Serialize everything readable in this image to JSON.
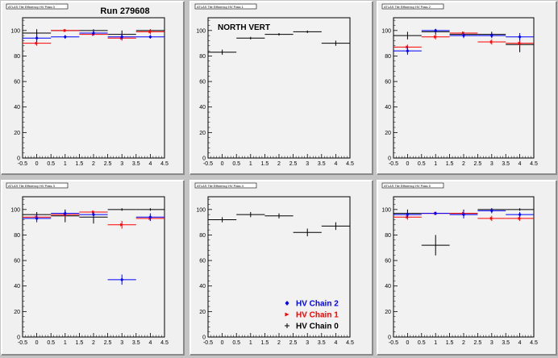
{
  "run_label": "Run 279608",
  "panel_titles": [
    "ATLAS Tile Efficiency HV Pass 0",
    "ATLAS Tile Efficiency HV Pass 1",
    "ATLAS Tile Efficiency HV Pass 2",
    "ATLAS Tile Efficiency HV Pass 3",
    "ATLAS Tile Efficiency HV Pass 4",
    "ATLAS Tile Efficiency HV Pass 5"
  ],
  "annotation": "NORTH VERT",
  "legend": [
    {
      "label": "HV Chain 2",
      "color": "#0000ff",
      "marker": "diamond"
    },
    {
      "label": "HV Chain 1",
      "color": "#ff0000",
      "marker": "triangle"
    },
    {
      "label": "HV Chain 0",
      "color": "#000000",
      "marker": "cross"
    }
  ],
  "colors": {
    "chain0": "#000000",
    "chain1": "#ff0000",
    "chain2": "#0000ff",
    "frame_bg": "#efefef",
    "canvas_bg": "#c4c4c4"
  },
  "chart_data": [
    {
      "type": "scatter",
      "xlim": [
        -0.5,
        4.5
      ],
      "ylim": [
        0,
        110
      ],
      "xticks": [
        "-0.5",
        "0",
        "0.5",
        "1",
        "1.5",
        "2",
        "2.5",
        "3",
        "3.5",
        "4",
        "4.5"
      ],
      "yticks": [
        "0",
        "20",
        "40",
        "60",
        "80",
        "100"
      ],
      "series": [
        {
          "color": "#000000",
          "points": [
            {
              "x": 0,
              "y": 98,
              "err": 3
            },
            {
              "x": 1,
              "y": 100,
              "err": 1
            },
            {
              "x": 2,
              "y": 100,
              "err": 1
            },
            {
              "x": 3,
              "y": 97,
              "err": 3
            },
            {
              "x": 4,
              "y": 100,
              "err": 1
            }
          ]
        },
        {
          "color": "#ff0000",
          "points": [
            {
              "x": 0,
              "y": 90,
              "err": 2
            },
            {
              "x": 1,
              "y": 100,
              "err": 1
            },
            {
              "x": 2,
              "y": 97,
              "err": 1
            },
            {
              "x": 3,
              "y": 94,
              "err": 2
            },
            {
              "x": 4,
              "y": 99,
              "err": 2
            }
          ]
        },
        {
          "color": "#0000ff",
          "points": [
            {
              "x": 0,
              "y": 94,
              "err": 3
            },
            {
              "x": 1,
              "y": 95,
              "err": 1
            },
            {
              "x": 2,
              "y": 98,
              "err": 2
            },
            {
              "x": 3,
              "y": 95,
              "err": 2
            },
            {
              "x": 4,
              "y": 95,
              "err": 1
            }
          ]
        }
      ]
    },
    {
      "type": "scatter",
      "xlim": [
        -0.5,
        4.5
      ],
      "ylim": [
        0,
        110
      ],
      "xticks": [
        "-0.5",
        "0",
        "0.5",
        "1",
        "1.5",
        "2",
        "2.5",
        "3",
        "3.5",
        "4",
        "4.5"
      ],
      "yticks": [
        "0",
        "20",
        "40",
        "60",
        "80",
        "100"
      ],
      "series": [
        {
          "color": "#000000",
          "points": [
            {
              "x": 0,
              "y": 83,
              "err": 2
            },
            {
              "x": 1,
              "y": 94,
              "err": 1
            },
            {
              "x": 2,
              "y": 97,
              "err": 1
            },
            {
              "x": 3,
              "y": 99,
              "err": 1
            },
            {
              "x": 4,
              "y": 90,
              "err": 2
            }
          ]
        }
      ]
    },
    {
      "type": "scatter",
      "xlim": [
        -0.5,
        4.5
      ],
      "ylim": [
        0,
        110
      ],
      "xticks": [
        "-0.5",
        "0",
        "0.5",
        "1",
        "1.5",
        "2",
        "2.5",
        "3",
        "3.5",
        "4",
        "4.5"
      ],
      "yticks": [
        "0",
        "20",
        "40",
        "60",
        "80",
        "100"
      ],
      "series": [
        {
          "color": "#000000",
          "points": [
            {
              "x": 0,
              "y": 96,
              "err": 3
            },
            {
              "x": 1,
              "y": 99,
              "err": 2
            },
            {
              "x": 2,
              "y": 97,
              "err": 2
            },
            {
              "x": 3,
              "y": 97,
              "err": 2
            },
            {
              "x": 4,
              "y": 89,
              "err": 6
            }
          ]
        },
        {
          "color": "#ff0000",
          "points": [
            {
              "x": 0,
              "y": 87,
              "err": 2
            },
            {
              "x": 1,
              "y": 95,
              "err": 2
            },
            {
              "x": 2,
              "y": 98,
              "err": 1
            },
            {
              "x": 3,
              "y": 91,
              "err": 2
            },
            {
              "x": 4,
              "y": 90,
              "err": 2
            }
          ]
        },
        {
          "color": "#0000ff",
          "points": [
            {
              "x": 0,
              "y": 84,
              "err": 3
            },
            {
              "x": 1,
              "y": 100,
              "err": 1
            },
            {
              "x": 2,
              "y": 96,
              "err": 2
            },
            {
              "x": 3,
              "y": 96,
              "err": 2
            },
            {
              "x": 4,
              "y": 95,
              "err": 3
            }
          ]
        }
      ]
    },
    {
      "type": "scatter",
      "xlim": [
        -0.5,
        4.5
      ],
      "ylim": [
        0,
        110
      ],
      "xticks": [
        "-0.5",
        "0",
        "0.5",
        "1",
        "1.5",
        "2",
        "2.5",
        "3",
        "3.5",
        "4",
        "4.5"
      ],
      "yticks": [
        "0",
        "20",
        "40",
        "60",
        "80",
        "100"
      ],
      "series": [
        {
          "color": "#000000",
          "points": [
            {
              "x": 0,
              "y": 96,
              "err": 2
            },
            {
              "x": 1,
              "y": 95,
              "err": 5
            },
            {
              "x": 2,
              "y": 94,
              "err": 5
            },
            {
              "x": 3,
              "y": 100,
              "err": 1
            },
            {
              "x": 4,
              "y": 100,
              "err": 1
            }
          ]
        },
        {
          "color": "#ff0000",
          "points": [
            {
              "x": 0,
              "y": 94,
              "err": 2
            },
            {
              "x": 1,
              "y": 96,
              "err": 2
            },
            {
              "x": 2,
              "y": 98,
              "err": 1
            },
            {
              "x": 3,
              "y": 88,
              "err": 3
            },
            {
              "x": 4,
              "y": 93,
              "err": 2
            }
          ]
        },
        {
          "color": "#0000ff",
          "points": [
            {
              "x": 0,
              "y": 93,
              "err": 3
            },
            {
              "x": 1,
              "y": 97,
              "err": 2
            },
            {
              "x": 2,
              "y": 96,
              "err": 2
            },
            {
              "x": 3,
              "y": 45,
              "err": 4
            },
            {
              "x": 4,
              "y": 94,
              "err": 3
            }
          ]
        }
      ]
    },
    {
      "type": "scatter",
      "xlim": [
        -0.5,
        4.5
      ],
      "ylim": [
        0,
        110
      ],
      "xticks": [
        "-0.5",
        "0",
        "0.5",
        "1",
        "1.5",
        "2",
        "2.5",
        "3",
        "3.5",
        "4",
        "4.5"
      ],
      "yticks": [
        "0",
        "20",
        "40",
        "60",
        "80",
        "100"
      ],
      "series": [
        {
          "color": "#000000",
          "points": [
            {
              "x": 0,
              "y": 92,
              "err": 2
            },
            {
              "x": 1,
              "y": 96,
              "err": 2
            },
            {
              "x": 2,
              "y": 95,
              "err": 2
            },
            {
              "x": 3,
              "y": 82,
              "err": 3
            },
            {
              "x": 4,
              "y": 87,
              "err": 3
            }
          ]
        }
      ]
    },
    {
      "type": "scatter",
      "xlim": [
        -0.5,
        4.5
      ],
      "ylim": [
        0,
        110
      ],
      "xticks": [
        "-0.5",
        "0",
        "0.5",
        "1",
        "1.5",
        "2",
        "2.5",
        "3",
        "3.5",
        "4",
        "4.5"
      ],
      "yticks": [
        "0",
        "20",
        "40",
        "60",
        "80",
        "100"
      ],
      "series": [
        {
          "color": "#000000",
          "points": [
            {
              "x": 0,
              "y": 97,
              "err": 3
            },
            {
              "x": 1,
              "y": 72,
              "err": 8
            },
            {
              "x": 2,
              "y": 97,
              "err": 3
            },
            {
              "x": 3,
              "y": 100,
              "err": 1
            },
            {
              "x": 4,
              "y": 100,
              "err": 1
            }
          ]
        },
        {
          "color": "#ff0000",
          "points": [
            {
              "x": 0,
              "y": 94,
              "err": 2
            },
            {
              "x": 1,
              "y": 97,
              "err": 1
            },
            {
              "x": 2,
              "y": 97,
              "err": 1
            },
            {
              "x": 3,
              "y": 93,
              "err": 2
            },
            {
              "x": 4,
              "y": 93,
              "err": 2
            }
          ]
        },
        {
          "color": "#0000ff",
          "points": [
            {
              "x": 0,
              "y": 96,
              "err": 2
            },
            {
              "x": 1,
              "y": 97,
              "err": 1
            },
            {
              "x": 2,
              "y": 96,
              "err": 3
            },
            {
              "x": 3,
              "y": 99,
              "err": 2
            },
            {
              "x": 4,
              "y": 96,
              "err": 2
            }
          ]
        }
      ]
    }
  ]
}
